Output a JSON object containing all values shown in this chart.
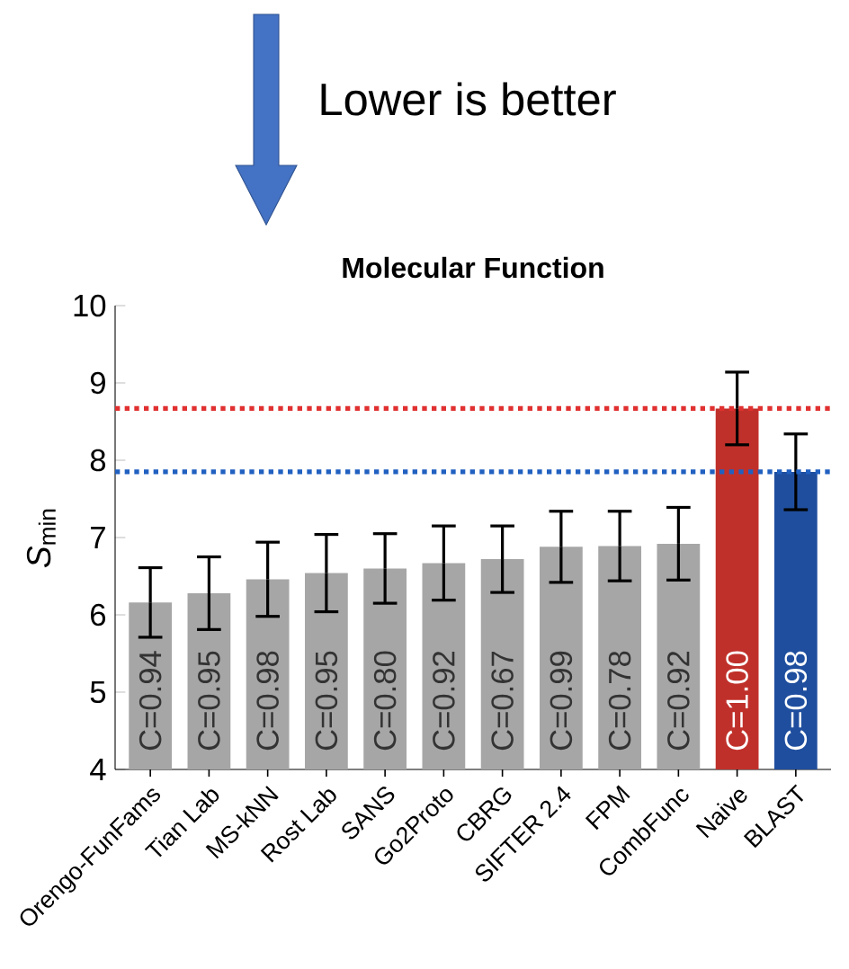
{
  "chart_data": {
    "type": "bar",
    "title": "Molecular Function",
    "ylabel": "*S*$_{min}$",
    "categories": [
      "Orengo-FunFams",
      "Tian Lab",
      "MS-kNN",
      "Rost Lab",
      "SANS",
      "Go2Proto",
      "CBRG",
      "SIFTER 2.4",
      "FPM",
      "CombFunc",
      "Naive",
      "BLAST"
    ],
    "values": [
      6.16,
      6.28,
      6.46,
      6.54,
      6.6,
      6.67,
      6.72,
      6.88,
      6.89,
      6.92,
      8.67,
      7.85
    ],
    "errors": [
      0.45,
      0.47,
      0.48,
      0.5,
      0.45,
      0.48,
      0.43,
      0.46,
      0.45,
      0.47,
      0.47,
      0.49
    ],
    "colors": [
      "#a6a6a6",
      "#a6a6a6",
      "#a6a6a6",
      "#a6a6a6",
      "#a6a6a6",
      "#a6a6a6",
      "#a6a6a6",
      "#a6a6a6",
      "#a6a6a6",
      "#a6a6a6",
      "#c0302a",
      "#1f4e9e"
    ],
    "ylim": [
      4,
      10
    ],
    "yticks": [
      4,
      5,
      6,
      7,
      8,
      9,
      10
    ],
    "grid": false,
    "ref_lines": [
      {
        "axis": "y",
        "value": 8.67,
        "color": "#e03030",
        "line_style": "dotted"
      },
      {
        "axis": "y",
        "value": 7.85,
        "color": "#2060c0",
        "line_style": "dotted"
      }
    ],
    "annotations": [
      "Lower is better",
      "C=0.94",
      "C=0.95",
      "C=0.98",
      "C=0.95",
      "C=0.80",
      "C=0.92",
      "C=0.67",
      "C=0.99",
      "C=0.78",
      "C=0.92",
      "C=1.00",
      "C=0.98"
    ]
  }
}
